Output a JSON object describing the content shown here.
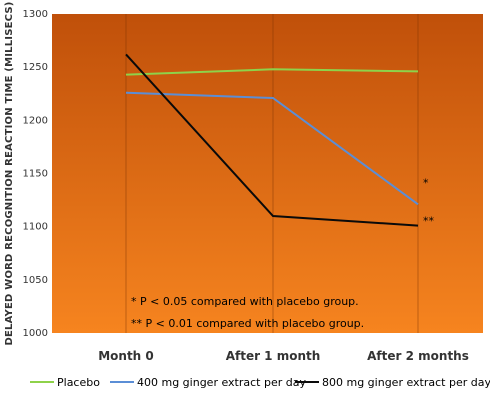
{
  "chart_data": {
    "type": "line",
    "ylabel": "DELAYED WORD RECOGNITION REACTION TIME (MILLISECS)",
    "categories": [
      "Month 0",
      "After 1 month",
      "After 2 months"
    ],
    "ylim": [
      1000,
      1300
    ],
    "yticks": [
      "1000",
      "1050",
      "1100",
      "1150",
      "1200",
      "1250",
      "1300"
    ],
    "series": [
      {
        "name": "Placebo",
        "values": [
          1243,
          1248,
          1246
        ],
        "color": "#8ed24a"
      },
      {
        "name": "400 mg ginger extract per day",
        "values": [
          1226,
          1221,
          1121
        ],
        "color": "#5b8ed6"
      },
      {
        "name": "800 mg ginger extract per day",
        "values": [
          1262,
          1110,
          1101
        ],
        "color": "#0a0a0a"
      }
    ],
    "significance_marks": [
      "*",
      "**"
    ],
    "notes": [
      "*  P < 0.05 compared with placebo group.",
      "** P < 0.01 compared with placebo group."
    ],
    "background_gradient": [
      "#c0500a",
      "#f6841f"
    ],
    "grid": false,
    "legend_position": "bottom"
  }
}
